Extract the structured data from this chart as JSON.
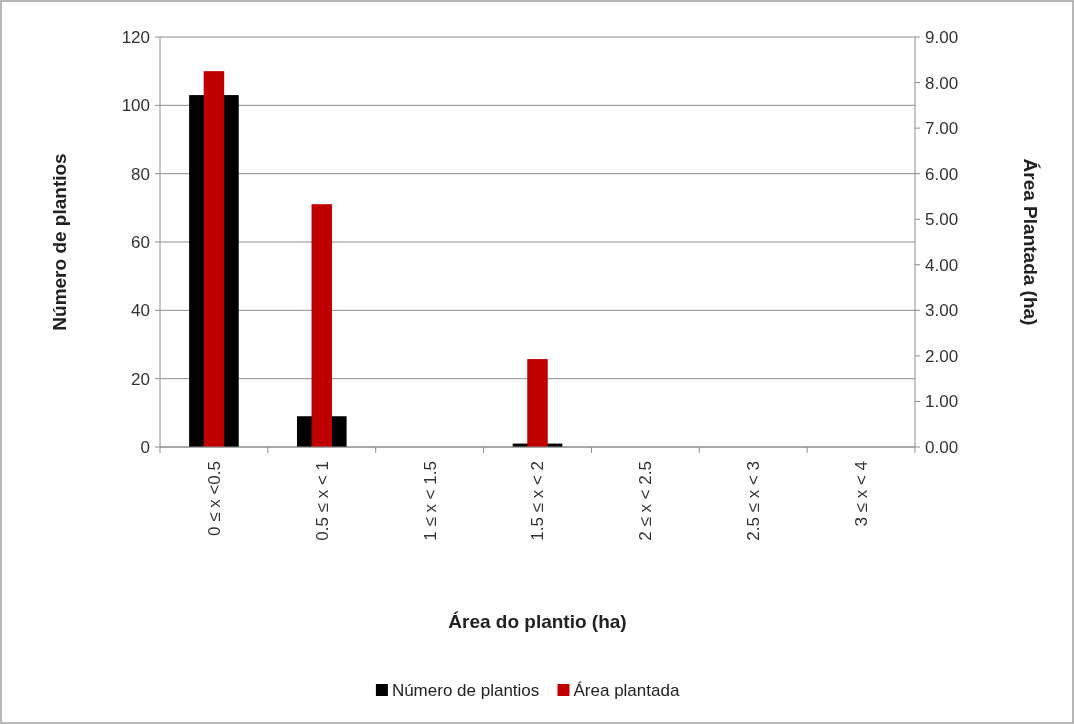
{
  "chart_data": {
    "type": "bar",
    "xlabel": "Área do plantio (ha)",
    "ylabel": "Número de plantios",
    "y2label": "Área Plantada (ha)",
    "categories": [
      "0 ≤ x <0.5",
      "0.5 ≤ x < 1",
      "1 ≤ x < 1.5",
      "1.5 ≤ x < 2",
      "2 ≤ x < 2.5",
      "2.5 ≤ x < 3",
      "3 ≤ x < 4"
    ],
    "series": [
      {
        "name": "Número de plantios",
        "color": "#000000",
        "values": [
          103,
          9,
          0,
          1,
          0,
          0,
          0
        ]
      },
      {
        "name": "Área plantada",
        "color": "#c00000",
        "axis": "y2",
        "values": [
          8.25,
          5.33,
          0,
          1.93,
          0,
          0,
          0
        ]
      }
    ],
    "ylim": [
      0,
      120
    ],
    "yticks": [
      0,
      20,
      40,
      60,
      80,
      100,
      120
    ],
    "y2lim": [
      0,
      9
    ],
    "y2ticks": [
      {
        "value": 0,
        "label": "0.00"
      },
      {
        "value": 1,
        "label": "1.00"
      },
      {
        "value": 2,
        "label": "2.00"
      },
      {
        "value": 3,
        "label": "3.00"
      },
      {
        "value": 4,
        "label": "4.00"
      },
      {
        "value": 5,
        "label": "5.00"
      },
      {
        "value": 6,
        "label": "6.00"
      },
      {
        "value": 7,
        "label": "7.00"
      },
      {
        "value": 8,
        "label": "8.00"
      },
      {
        "value": 9,
        "label": "9.00"
      }
    ],
    "grid": "y",
    "legend": "bottom"
  }
}
